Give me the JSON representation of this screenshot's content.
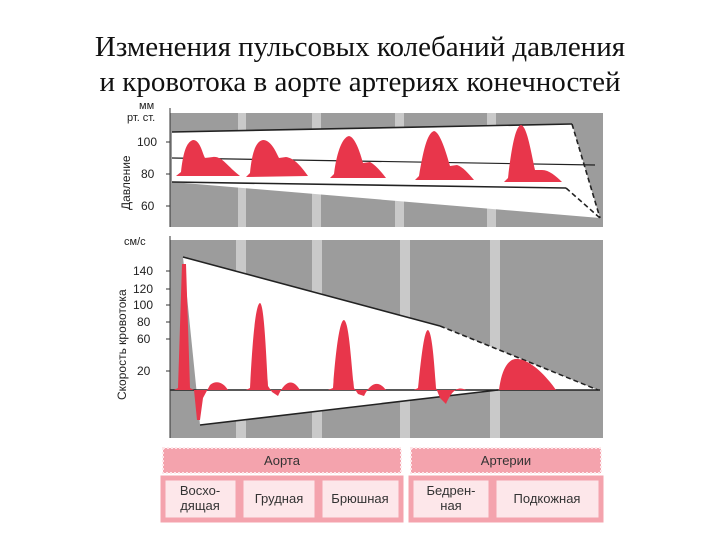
{
  "title": {
    "line1": "Изменения пульсовых колебаний давления",
    "line2": "и кровотока в аорте  артериях конечностей"
  },
  "pressure_panel": {
    "unit_line1": "мм",
    "unit_line2": "рт. ст.",
    "axis_label": "Давление",
    "ticks": [
      "100",
      "80",
      "60"
    ]
  },
  "flow_panel": {
    "unit": "см/с",
    "axis_label": "Скорость кровотока",
    "ticks": [
      "140",
      "120",
      "100",
      "80",
      "60",
      "20"
    ]
  },
  "groups": {
    "aorta": "Аорта",
    "arteries": "Артерии"
  },
  "segments": {
    "ascending_line1": "Восхо-",
    "ascending_line2": "дящая",
    "thoracic": "Грудная",
    "abdominal": "Брюшная",
    "femoral_line1": "Бедрен-",
    "femoral_line2": "ная",
    "subcutaneous": "Подкожная"
  },
  "colors": {
    "pulse": "#e8364b",
    "panel": "#9c9c9c",
    "band": "#f4a3ad",
    "label_bg": "#fde7ea"
  }
}
